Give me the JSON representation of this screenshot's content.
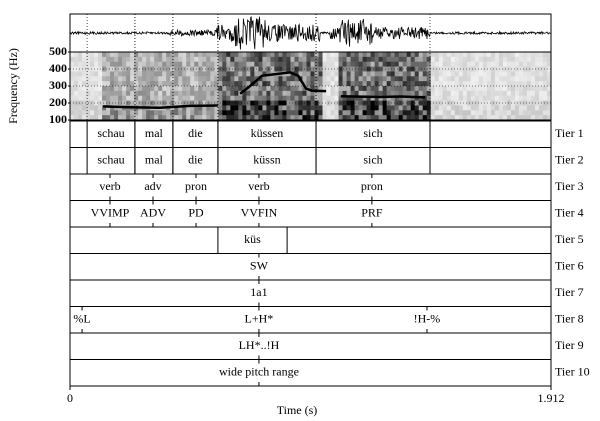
{
  "chart_data": {
    "type": "praat",
    "x_label": "Time (s)",
    "y_label": "Frequency (Hz)",
    "xlim": [
      0,
      1.912
    ],
    "xticks": [
      0,
      1.912
    ],
    "ylim": [
      100,
      500
    ],
    "yticks": [
      100,
      200,
      300,
      400,
      500
    ],
    "pitch": {
      "color": "#000000",
      "x": [
        0.131,
        0.239,
        0.358,
        0.477,
        0.588,
        null,
        0.676,
        0.716,
        0.763,
        0.875,
        0.907,
        0.938,
        0.962,
        1.018,
        null,
        1.077,
        1.232,
        1.312,
        1.411
      ],
      "values": [
        180,
        175,
        172,
        183,
        185,
        null,
        255,
        300,
        360,
        380,
        360,
        285,
        272,
        270,
        null,
        240,
        235,
        238,
        233
      ]
    },
    "tiers": [
      {
        "name": "Tier 1",
        "intervals": [
          {
            "start": 0.068,
            "end": 0.258,
            "text": "schau"
          },
          {
            "start": 0.258,
            "end": 0.409,
            "text": "mal"
          },
          {
            "start": 0.409,
            "end": 0.588,
            "text": "die"
          },
          {
            "start": 0.588,
            "end": 0.978,
            "text": "küssen"
          },
          {
            "start": 0.978,
            "end": 1.431,
            "text": "sich"
          }
        ]
      },
      {
        "name": "Tier 2",
        "intervals": [
          {
            "start": 0.068,
            "end": 0.258,
            "text": "schau"
          },
          {
            "start": 0.258,
            "end": 0.409,
            "text": "mal"
          },
          {
            "start": 0.409,
            "end": 0.588,
            "text": "die"
          },
          {
            "start": 0.588,
            "end": 0.978,
            "text": "küssn"
          },
          {
            "start": 0.978,
            "end": 1.431,
            "text": "sich"
          }
        ]
      },
      {
        "name": "Tier 3",
        "points": [
          {
            "time": 0.159,
            "text": "verb"
          },
          {
            "time": 0.33,
            "text": "adv"
          },
          {
            "time": 0.501,
            "text": "pron"
          },
          {
            "time": 0.751,
            "text": "verb"
          },
          {
            "time": 1.2,
            "text": "pron"
          }
        ]
      },
      {
        "name": "Tier 4",
        "points": [
          {
            "time": 0.159,
            "text": "VVIMP"
          },
          {
            "time": 0.33,
            "text": "ADV"
          },
          {
            "time": 0.501,
            "text": "PD"
          },
          {
            "time": 0.751,
            "text": "VVFIN"
          },
          {
            "time": 1.2,
            "text": "PRF"
          }
        ]
      },
      {
        "name": "Tier 5",
        "intervals": [
          {
            "start": 0.588,
            "end": 0.863,
            "text": "küs"
          }
        ]
      },
      {
        "name": "Tier 6",
        "points": [
          {
            "time": 0.751,
            "text": "SW"
          }
        ]
      },
      {
        "name": "Tier 7",
        "points": [
          {
            "time": 0.751,
            "text": "1a1"
          }
        ]
      },
      {
        "name": "Tier 8",
        "points": [
          {
            "time": 0.048,
            "text": "%L"
          },
          {
            "time": 0.751,
            "text": "L+H*"
          },
          {
            "time": 1.419,
            "text": "!H-%"
          }
        ]
      },
      {
        "name": "Tier 9",
        "points": [
          {
            "time": 0.751,
            "text": "LH*..!H"
          }
        ]
      },
      {
        "name": "Tier 10",
        "points": [
          {
            "time": 0.751,
            "text": "wide pitch range"
          }
        ]
      }
    ]
  }
}
